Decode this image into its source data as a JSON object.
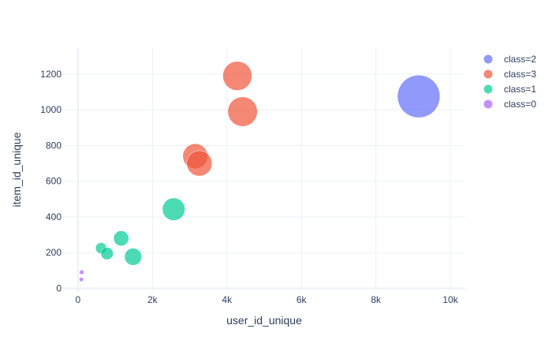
{
  "chart_data": {
    "type": "scatter",
    "xlabel": "user_id_unique",
    "ylabel": "item_id_unique",
    "xlim": [
      -400,
      10400
    ],
    "ylim": [
      -20,
      1350
    ],
    "x_ticks": [
      0,
      2000,
      4000,
      6000,
      8000,
      10000
    ],
    "x_tick_labels": [
      "0",
      "2k",
      "4k",
      "6k",
      "8k",
      "10k"
    ],
    "y_ticks": [
      0,
      200,
      400,
      600,
      800,
      1000,
      1200
    ],
    "y_tick_labels": [
      "0",
      "200",
      "400",
      "600",
      "800",
      "1000",
      "1200"
    ],
    "grid": true,
    "legend_position": "top-right",
    "series": [
      {
        "name": "class=2",
        "color": "#636efa",
        "points": [
          {
            "x": 9150,
            "y": 1075,
            "size": 9150
          }
        ]
      },
      {
        "name": "class=3",
        "color": "#ef553b",
        "points": [
          {
            "x": 4280,
            "y": 1190,
            "size": 4280
          },
          {
            "x": 4420,
            "y": 990,
            "size": 4420
          },
          {
            "x": 3150,
            "y": 740,
            "size": 3150
          },
          {
            "x": 3260,
            "y": 700,
            "size": 3260
          }
        ]
      },
      {
        "name": "class=1",
        "color": "#00cc96",
        "points": [
          {
            "x": 2570,
            "y": 443,
            "size": 2570
          },
          {
            "x": 1160,
            "y": 280,
            "size": 1160
          },
          {
            "x": 1480,
            "y": 177,
            "size": 1480
          },
          {
            "x": 620,
            "y": 225,
            "size": 620
          },
          {
            "x": 780,
            "y": 195,
            "size": 780
          }
        ]
      },
      {
        "name": "class=0",
        "color": "#ab63fa",
        "points": [
          {
            "x": 100,
            "y": 90,
            "size": 100
          },
          {
            "x": 90,
            "y": 50,
            "size": 90
          }
        ]
      }
    ]
  }
}
